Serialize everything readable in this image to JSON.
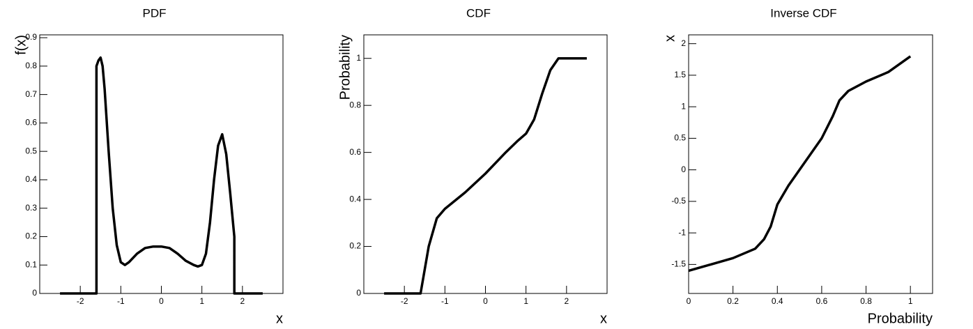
{
  "chart_data": [
    {
      "type": "line",
      "title": "PDF",
      "x_label": "x",
      "y_label": "f(x)",
      "x": [
        -2.5,
        -1.6,
        -1.6,
        -1.55,
        -1.5,
        -1.45,
        -1.4,
        -1.3,
        -1.2,
        -1.1,
        -1.0,
        -0.9,
        -0.8,
        -0.6,
        -0.4,
        -0.2,
        0,
        0.2,
        0.4,
        0.6,
        0.8,
        0.9,
        1.0,
        1.1,
        1.2,
        1.3,
        1.4,
        1.5,
        1.6,
        1.7,
        1.8,
        1.8,
        2.5
      ],
      "values": [
        0,
        0,
        0.8,
        0.82,
        0.83,
        0.8,
        0.72,
        0.5,
        0.3,
        0.17,
        0.11,
        0.1,
        0.11,
        0.14,
        0.16,
        0.165,
        0.165,
        0.16,
        0.14,
        0.115,
        0.1,
        0.095,
        0.1,
        0.14,
        0.25,
        0.4,
        0.52,
        0.56,
        0.49,
        0.35,
        0.2,
        0,
        0
      ],
      "color": "#000000",
      "xlim": [
        -3,
        3
      ],
      "xticks": [
        -2,
        -1,
        0,
        1,
        2
      ],
      "ylim": [
        0,
        0.91
      ],
      "yticks": [
        0,
        0.1,
        0.2,
        0.3,
        0.4,
        0.5,
        0.6,
        0.7,
        0.8,
        0.9
      ]
    },
    {
      "type": "line",
      "title": "CDF",
      "x_label": "x",
      "y_label": "Probability",
      "x": [
        -2.5,
        -1.6,
        -1.4,
        -1.2,
        -1.0,
        -0.5,
        0,
        0.5,
        0.8,
        1.0,
        1.2,
        1.4,
        1.6,
        1.8,
        2.5
      ],
      "values": [
        0,
        0,
        0.2,
        0.32,
        0.36,
        0.43,
        0.51,
        0.6,
        0.65,
        0.68,
        0.74,
        0.85,
        0.95,
        1.0,
        1.0
      ],
      "color": "#000000",
      "xlim": [
        -3,
        3
      ],
      "xticks": [
        -2,
        -1,
        0,
        1,
        2
      ],
      "ylim": [
        0,
        1.1
      ],
      "yticks": [
        0,
        0.2,
        0.4,
        0.6,
        0.8,
        1
      ]
    },
    {
      "type": "line",
      "title": "Inverse CDF",
      "x_label": "Probability",
      "y_label": "x",
      "x": [
        0,
        0.1,
        0.2,
        0.3,
        0.34,
        0.37,
        0.4,
        0.45,
        0.5,
        0.55,
        0.6,
        0.65,
        0.68,
        0.72,
        0.8,
        0.9,
        1.0
      ],
      "values": [
        -1.6,
        -1.5,
        -1.4,
        -1.25,
        -1.1,
        -0.9,
        -0.55,
        -0.25,
        0,
        0.25,
        0.5,
        0.85,
        1.1,
        1.25,
        1.4,
        1.55,
        1.8
      ],
      "color": "#000000",
      "xlim": [
        0,
        1.1
      ],
      "xticks": [
        0,
        0.2,
        0.4,
        0.6,
        0.8,
        1
      ],
      "ylim": [
        -1.96,
        2.14
      ],
      "yticks": [
        -1.5,
        -1,
        -0.5,
        0,
        0.5,
        1,
        1.5,
        2
      ]
    }
  ]
}
